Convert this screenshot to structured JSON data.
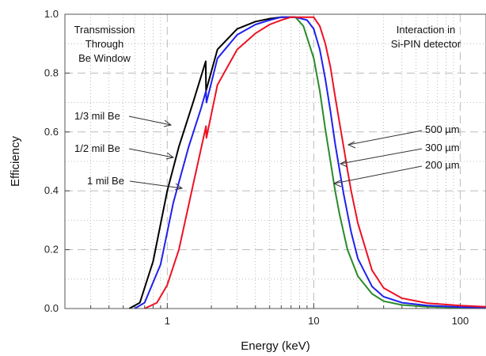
{
  "chart_data": {
    "type": "line",
    "xlabel": "Energy (keV)",
    "ylabel": "Efficiency",
    "xscale": "log",
    "xlim": [
      0.2,
      150
    ],
    "ylim": [
      0,
      1.0
    ],
    "grid": true,
    "x_ticks": [
      {
        "value": 1,
        "label": "1"
      },
      {
        "value": 10,
        "label": "10"
      },
      {
        "value": 100,
        "label": "100"
      }
    ],
    "y_ticks": [
      {
        "value": 0.0,
        "label": "0.0"
      },
      {
        "value": 0.2,
        "label": "0.2"
      },
      {
        "value": 0.4,
        "label": "0.4"
      },
      {
        "value": 0.6,
        "label": "0.6"
      },
      {
        "value": 0.8,
        "label": "0.8"
      },
      {
        "value": 1.0,
        "label": "1.0"
      }
    ],
    "series": [
      {
        "color": "#000000",
        "x": [
          0.55,
          0.65,
          0.8,
          1.0,
          1.2,
          1.5,
          1.83,
          1.84,
          2.2,
          3,
          4,
          5,
          6,
          7,
          7.5
        ],
        "y": [
          0.0,
          0.02,
          0.16,
          0.4,
          0.55,
          0.7,
          0.84,
          0.74,
          0.88,
          0.95,
          0.975,
          0.985,
          0.99,
          0.99,
          0.99
        ]
      },
      {
        "color": "#2020ee",
        "x": [
          0.6,
          0.7,
          0.9,
          1.1,
          1.4,
          1.7,
          1.84,
          1.85,
          2.2,
          3,
          4,
          5,
          6,
          7,
          7.5
        ],
        "y": [
          0.0,
          0.02,
          0.15,
          0.36,
          0.55,
          0.68,
          0.74,
          0.7,
          0.85,
          0.93,
          0.965,
          0.98,
          0.99,
          0.99,
          0.99
        ]
      },
      {
        "color": "#ee1122",
        "x": [
          0.7,
          0.85,
          1.0,
          1.2,
          1.5,
          1.84,
          1.85,
          2.2,
          3,
          4,
          5,
          6,
          7,
          7.5
        ],
        "y": [
          0.0,
          0.02,
          0.08,
          0.2,
          0.42,
          0.62,
          0.58,
          0.76,
          0.88,
          0.935,
          0.965,
          0.98,
          0.99,
          0.99
        ]
      },
      {
        "color": "#2a8a2a",
        "x": [
          7.5,
          8.5,
          10,
          11,
          12,
          13,
          14,
          15,
          17,
          20,
          25,
          30,
          40,
          60,
          100,
          150
        ],
        "y": [
          0.99,
          0.96,
          0.85,
          0.74,
          0.61,
          0.5,
          0.4,
          0.32,
          0.2,
          0.11,
          0.05,
          0.025,
          0.012,
          0.006,
          0.003,
          0.002
        ]
      },
      {
        "color": "#2020ee",
        "x": [
          7.5,
          9,
          10,
          11,
          12,
          13,
          14,
          15,
          16,
          18,
          20,
          25,
          30,
          40,
          60,
          100,
          150
        ],
        "y": [
          0.99,
          0.98,
          0.95,
          0.88,
          0.78,
          0.67,
          0.56,
          0.47,
          0.39,
          0.26,
          0.17,
          0.075,
          0.04,
          0.02,
          0.01,
          0.005,
          0.003
        ]
      },
      {
        "color": "#ee1122",
        "x": [
          7.5,
          9,
          10,
          11,
          12,
          13,
          14,
          15,
          16,
          17,
          18,
          20,
          25,
          30,
          40,
          60,
          100,
          150
        ],
        "y": [
          0.99,
          0.99,
          0.99,
          0.96,
          0.9,
          0.82,
          0.72,
          0.63,
          0.55,
          0.47,
          0.4,
          0.29,
          0.13,
          0.07,
          0.035,
          0.018,
          0.01,
          0.006
        ]
      }
    ],
    "annotations": {
      "left_title": [
        "Transmission",
        "Through",
        "Be Window"
      ],
      "right_title": [
        "Interaction in",
        "Si-PIN detector"
      ],
      "labels": [
        {
          "text": "1/3 mil Be"
        },
        {
          "text": "1/2 mil Be"
        },
        {
          "text": "1 mil Be"
        },
        {
          "text": "500 µm"
        },
        {
          "text": "300 µm"
        },
        {
          "text": "200 µm"
        }
      ]
    }
  }
}
